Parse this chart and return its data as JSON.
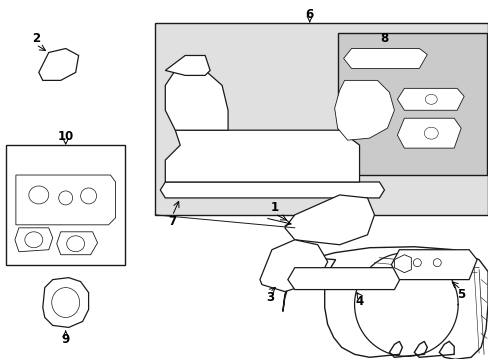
{
  "bg_color": "#ffffff",
  "line_color": "#1a1a1a",
  "shade_color": "#e0e0e0",
  "shade_color2": "#cacaca",
  "fig_width": 4.89,
  "fig_height": 3.6,
  "dpi": 100
}
